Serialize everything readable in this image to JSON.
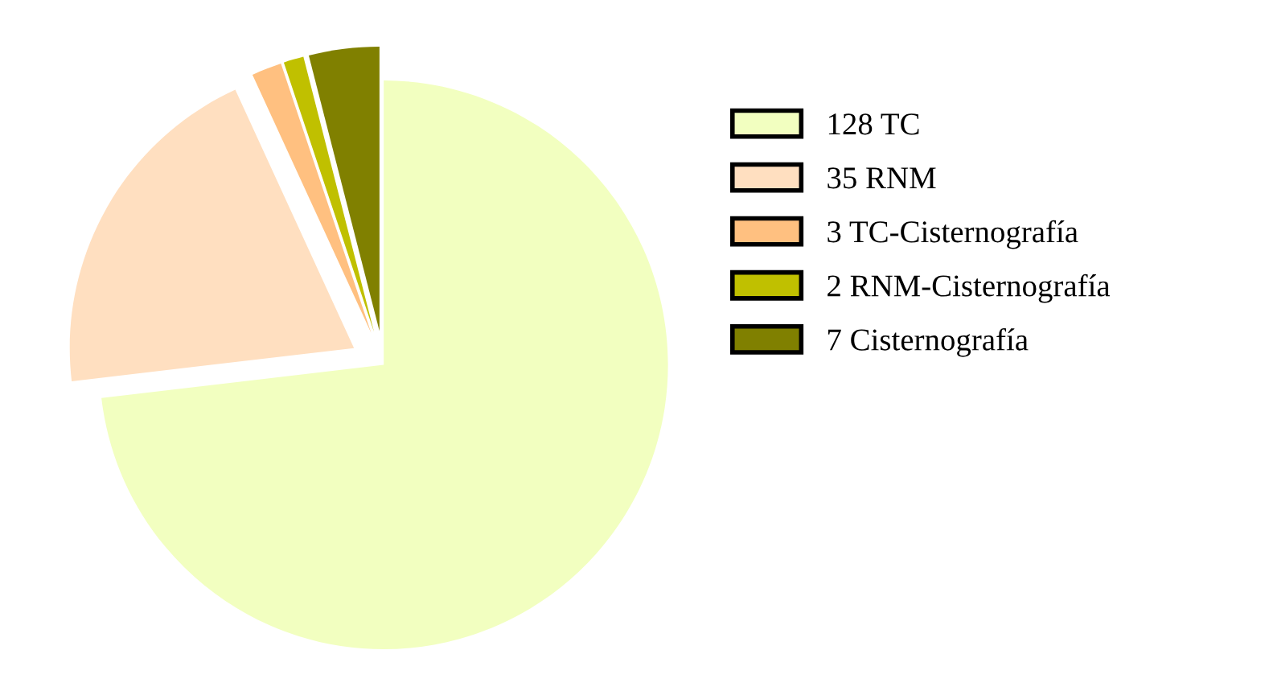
{
  "chart_data": {
    "type": "pie",
    "categories": [
      "128 TC",
      "35 RNM",
      "3 TC-Cisternografía",
      "2 RNM-Cisternografía",
      "7 Cisternografía"
    ],
    "values": [
      128,
      35,
      3,
      2,
      7
    ],
    "colors": [
      "#f2ffc0",
      "#ffdfc0",
      "#ffc080",
      "#c0c000",
      "#808000"
    ],
    "legend": "right"
  }
}
